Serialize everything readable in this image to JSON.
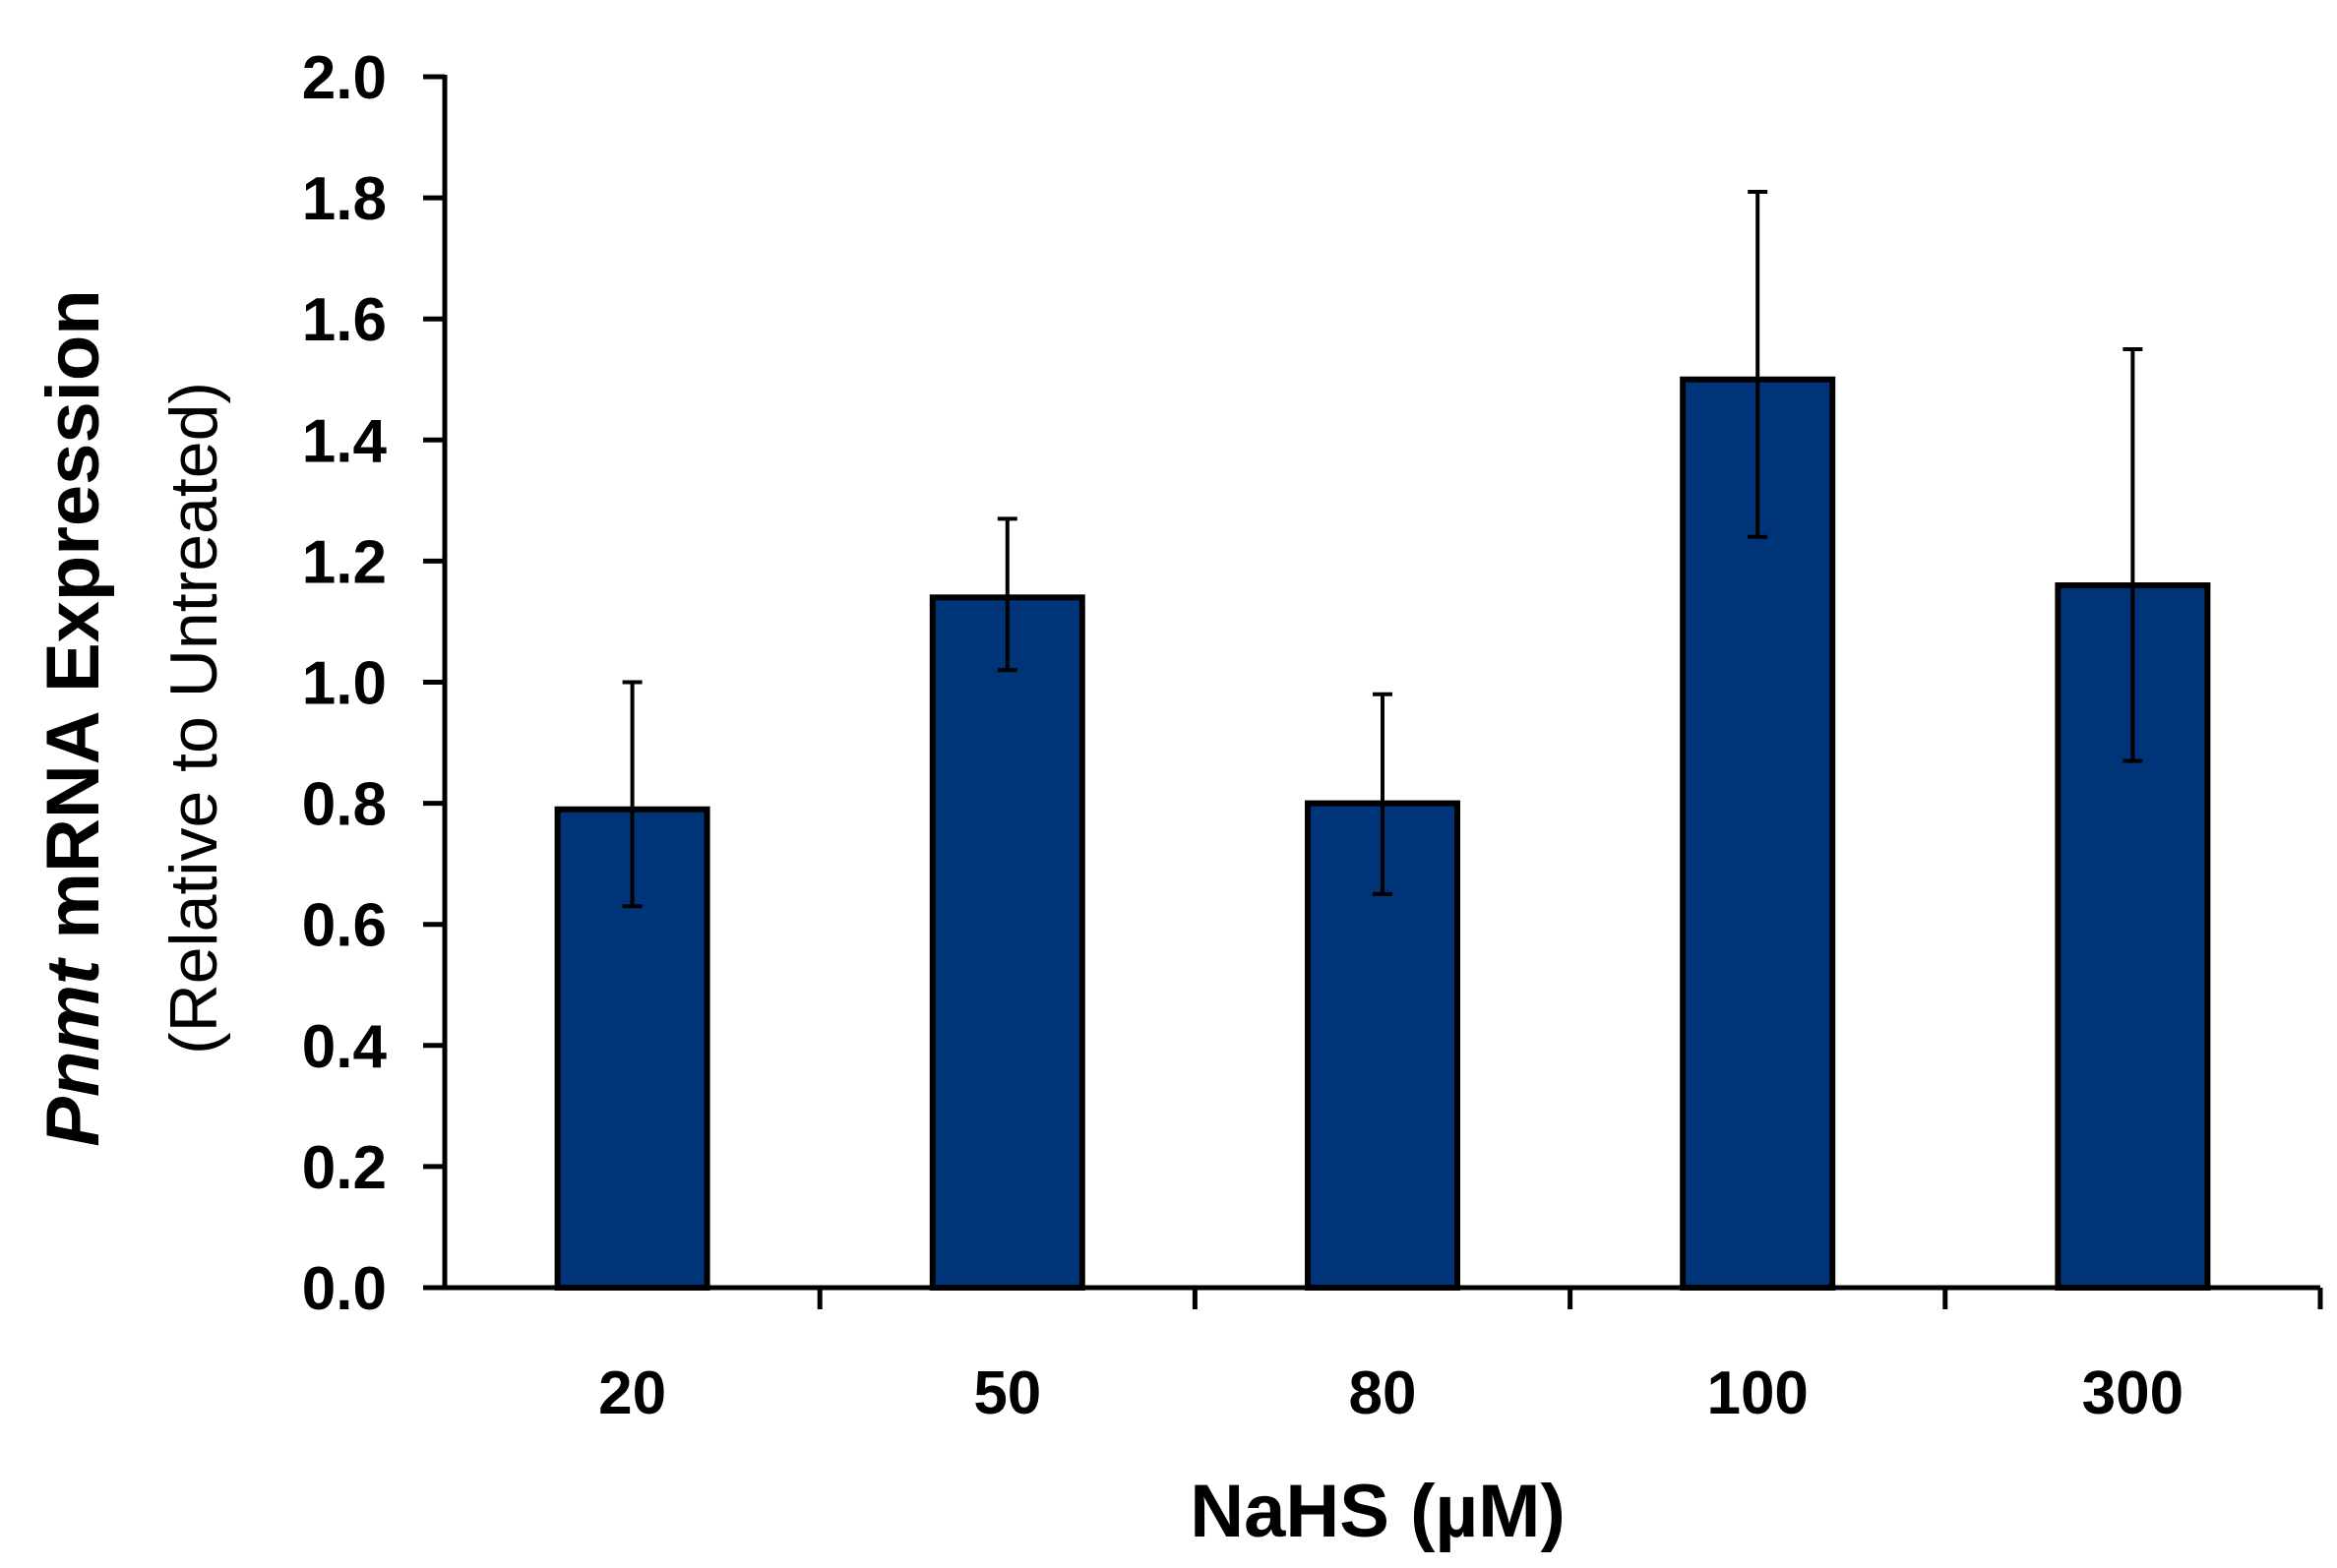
{
  "chart_data": {
    "type": "bar",
    "categories": [
      "20",
      "50",
      "80",
      "100",
      "300"
    ],
    "values": [
      0.79,
      1.14,
      0.8,
      1.5,
      1.16
    ],
    "error_upper": [
      1.0,
      1.27,
      0.98,
      1.81,
      1.55
    ],
    "error_lower": [
      0.63,
      1.02,
      0.65,
      1.24,
      0.87
    ],
    "xlabel": "NaHS (µM)",
    "ylabel_italic": "Pnmt",
    "ylabel_rest": " mRNA Expression",
    "ylabel_sub": "(Relative to Untreated)",
    "ylim": [
      0,
      2.0
    ],
    "yticks": [
      "0.0",
      "0.2",
      "0.4",
      "0.6",
      "0.8",
      "1.0",
      "1.2",
      "1.4",
      "1.6",
      "1.8",
      "2.0"
    ],
    "bar_color": "#003478",
    "edge_color": "#000000",
    "grid": false,
    "legend": "none"
  }
}
